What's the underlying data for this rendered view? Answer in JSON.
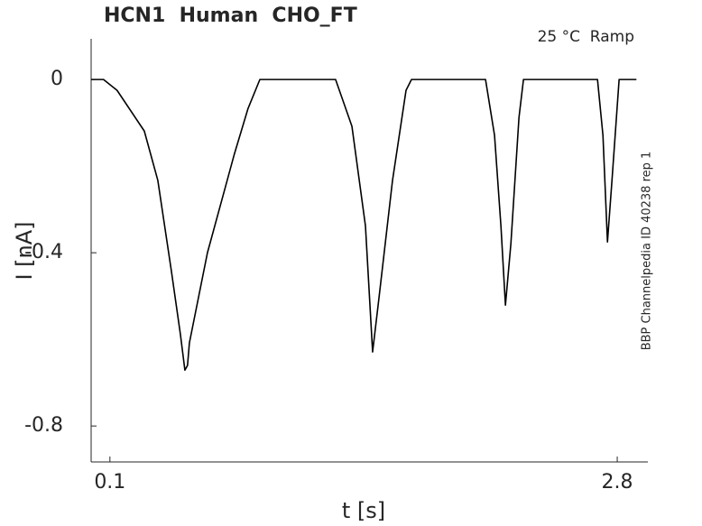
{
  "chart_data": {
    "type": "line",
    "title": "HCN1  Human  CHO_FT",
    "annotation": "25 °C  Ramp",
    "side_note": "BBP Channelpedia ID 40238 rep 1",
    "x_label": "t [s]",
    "y_label": "I [nA]",
    "x": [
      0,
      0.066,
      0.138,
      0.283,
      0.355,
      0.427,
      0.475,
      0.499,
      0.513,
      0.523,
      0.619,
      0.763,
      0.835,
      0.898,
      1.301,
      1.388,
      1.46,
      1.498,
      1.532,
      1.604,
      1.676,
      1.705,
      2.099,
      2.147,
      2.181,
      2.205,
      2.234,
      2.277,
      2.301,
      2.695,
      2.724,
      2.748,
      2.772,
      2.81,
      2.902
    ],
    "values": [
      0,
      0,
      -0.025,
      -0.119,
      -0.233,
      -0.442,
      -0.588,
      -0.671,
      -0.66,
      -0.608,
      -0.4,
      -0.171,
      -0.067,
      0,
      0,
      -0.108,
      -0.338,
      -0.629,
      -0.504,
      -0.233,
      -0.025,
      0,
      0,
      -0.129,
      -0.338,
      -0.521,
      -0.379,
      -0.088,
      0,
      0,
      -0.129,
      -0.375,
      -0.233,
      0,
      0
    ],
    "color": "#000000",
    "xlim": [
      0,
      2.963
    ],
    "xticks": [
      0.1,
      2.8
    ],
    "ylim": [
      -0.883,
      0.094
    ],
    "yticks": [
      0,
      -0.4,
      -0.8
    ],
    "grid": false
  }
}
